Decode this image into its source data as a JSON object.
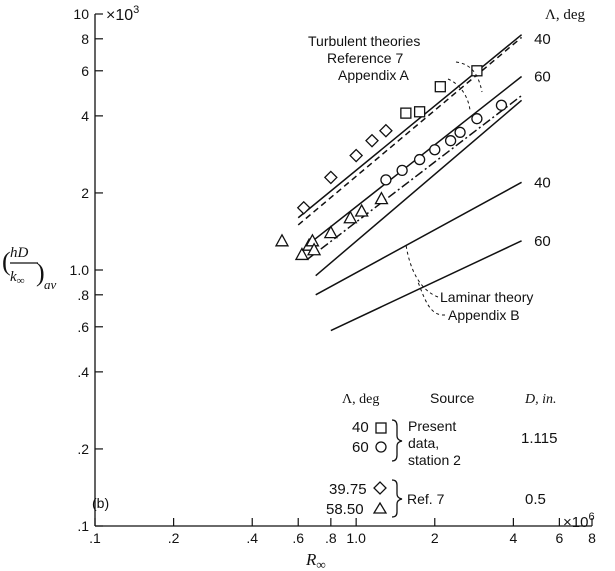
{
  "chart_data": {
    "type": "scatter",
    "x_scale": "log",
    "y_scale": "log",
    "xlim": [
      0.1,
      8
    ],
    "ylim": [
      0.1,
      10
    ],
    "x_multiplier_label": "×10",
    "x_multiplier_exp": "6",
    "y_multiplier_label": "×10",
    "y_multiplier_exp": "3",
    "xlabel": "R",
    "xlabel_sub": "∞",
    "ylabel": "(hD/k∞)av",
    "x_ticks": [
      {
        "v": 0.1,
        "label": ".1"
      },
      {
        "v": 0.2,
        "label": ".2"
      },
      {
        "v": 0.4,
        "label": ".4"
      },
      {
        "v": 0.6,
        "label": ".6"
      },
      {
        "v": 0.8,
        "label": ".8"
      },
      {
        "v": 1.0,
        "label": "1.0"
      },
      {
        "v": 2,
        "label": "2"
      },
      {
        "v": 4,
        "label": "4"
      },
      {
        "v": 6,
        "label": "6"
      },
      {
        "v": 8,
        "label": "8"
      }
    ],
    "y_ticks": [
      {
        "v": 0.1,
        "label": ".1"
      },
      {
        "v": 0.2,
        "label": ".2"
      },
      {
        "v": 0.4,
        "label": ".4"
      },
      {
        "v": 0.6,
        "label": ".6"
      },
      {
        "v": 0.8,
        "label": ".8"
      },
      {
        "v": 1.0,
        "label": "1.0"
      },
      {
        "v": 2,
        "label": "2"
      },
      {
        "v": 4,
        "label": "4"
      },
      {
        "v": 6,
        "label": "6"
      },
      {
        "v": 8,
        "label": "8"
      },
      {
        "v": 10,
        "label": "10"
      }
    ],
    "panel_label": "(b)",
    "lambda_header": "Λ, deg",
    "series": [
      {
        "marker": "square",
        "points": [
          [
            1.55,
            4.1
          ],
          [
            1.75,
            4.15
          ],
          [
            2.1,
            5.2
          ],
          [
            2.9,
            6.0
          ]
        ]
      },
      {
        "marker": "circle",
        "points": [
          [
            1.3,
            2.25
          ],
          [
            1.5,
            2.45
          ],
          [
            1.75,
            2.7
          ],
          [
            2.0,
            2.95
          ],
          [
            2.3,
            3.2
          ],
          [
            2.5,
            3.45
          ],
          [
            2.9,
            3.9
          ],
          [
            3.6,
            4.4
          ]
        ]
      },
      {
        "marker": "diamond",
        "points": [
          [
            0.63,
            1.75
          ],
          [
            0.8,
            2.3
          ],
          [
            1.0,
            2.8
          ],
          [
            1.15,
            3.2
          ],
          [
            1.3,
            3.5
          ]
        ]
      },
      {
        "marker": "triangle",
        "points": [
          [
            0.52,
            1.3
          ],
          [
            0.62,
            1.15
          ],
          [
            0.66,
            1.25
          ],
          [
            0.68,
            1.3
          ],
          [
            0.69,
            1.2
          ],
          [
            0.8,
            1.4
          ],
          [
            0.95,
            1.6
          ],
          [
            1.05,
            1.7
          ],
          [
            1.25,
            1.9
          ]
        ]
      }
    ],
    "lines": [
      {
        "from": [
          0.6,
          1.6
        ],
        "to": [
          4.3,
          8.3
        ],
        "style": "solid"
      },
      {
        "from": [
          0.6,
          1.5
        ],
        "to": [
          4.3,
          8.1
        ],
        "style": "dashed"
      },
      {
        "from": [
          0.65,
          1.25
        ],
        "to": [
          4.3,
          5.7
        ],
        "style": "solid"
      },
      {
        "from": [
          0.65,
          1.1
        ],
        "to": [
          4.3,
          4.8
        ],
        "style": "dashdot"
      },
      {
        "from": [
          0.7,
          0.95
        ],
        "to": [
          4.3,
          4.6
        ],
        "style": "solid"
      },
      {
        "from": [
          0.7,
          0.8
        ],
        "to": [
          4.3,
          2.2
        ],
        "style": "solid"
      },
      {
        "from": [
          0.8,
          0.58
        ],
        "to": [
          4.3,
          1.3
        ],
        "style": "solid"
      }
    ],
    "line_labels": [
      {
        "text": "40",
        "x": 4.8,
        "y": 8.0
      },
      {
        "text": "60",
        "x": 4.8,
        "y": 5.7
      },
      {
        "text": "40",
        "x": 4.8,
        "y": 2.2
      },
      {
        "text": "60",
        "x": 4.8,
        "y": 1.3
      }
    ],
    "annotations": [
      "Turbulent theories",
      "Reference 7",
      "Appendix A",
      "Laminar theory",
      "Appendix B"
    ],
    "legend_table": {
      "headers": [
        "Λ, deg",
        "Source",
        "D, in."
      ],
      "rows": [
        {
          "lambda": "40",
          "marker": "square"
        },
        {
          "lambda": "60",
          "marker": "circle"
        },
        {
          "lambda": "39.75",
          "marker": "diamond"
        },
        {
          "lambda": "58.50",
          "marker": "triangle"
        }
      ],
      "source_present": [
        "Present",
        "data,",
        "station 2"
      ],
      "source_ref": "Ref. 7",
      "d_present": "1.115",
      "d_ref": "0.5"
    }
  }
}
